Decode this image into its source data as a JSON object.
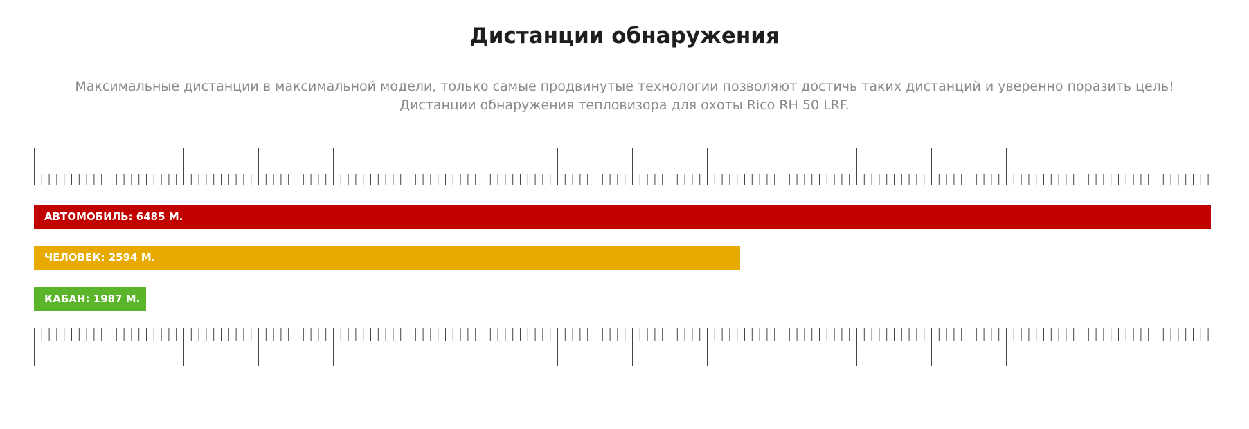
{
  "header": {
    "title": "Дистанции обнаружения",
    "subtitle": [
      "Максимальные дистанции в максимальной модели, только самые продвинутые технологии позволяют достичь таких дистанций и уверенно поразить цель!",
      "Дистанции обнаружения тепловизора для охоты Rico RH 50 LRF."
    ]
  },
  "bars": [
    {
      "label": "АВТОМОБИЛЬ: 6485 М.",
      "color": "#c10000"
    },
    {
      "label": "ЧЕЛОВЕК: 2594 М.",
      "color": "#e9aa00"
    },
    {
      "label": "КАБАН: 1987 М.",
      "color": "#5ab52a"
    }
  ]
}
